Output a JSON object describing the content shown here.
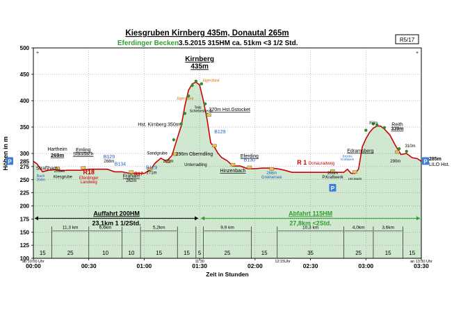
{
  "header": {
    "title": "Kiesgruben  Kirnberg 435m,  Donautal  265m",
    "subtitle_region": "Eferdinger Becken",
    "subtitle_details": "3.5.2015      315HM     ca.  51km      <3 1/2  Std.",
    "route_id": "R5/17"
  },
  "colors": {
    "profile_fill": "#cfe8cf",
    "profile_line": "#cc0000",
    "green_text": "#2e9e2e",
    "blue_text": "#1f5fbf",
    "red_text": "#cc0000",
    "start_badge": "#3a7fd5"
  },
  "chart_data": {
    "type": "area",
    "title": "Kiesgruben  Kirnberg 435m,  Donautal  265m",
    "xlabel": "Zeit in Stunden",
    "ylabel": "Höhen in m",
    "ylim": [
      100,
      500
    ],
    "xlim": [
      0,
      210
    ],
    "grid": true,
    "y_ticks": [
      "100",
      "125",
      "150",
      "175",
      "200",
      "225",
      "250",
      "275",
      "300",
      "350",
      "400",
      "450",
      "500"
    ],
    "y_tick_values": [
      100,
      125,
      150,
      175,
      200,
      225,
      250,
      275,
      300,
      350,
      400,
      450,
      500
    ],
    "y_extra_label": {
      "value": 285,
      "label": "285"
    },
    "x_ticks": [
      {
        "t": 0,
        "label": "00:00"
      },
      {
        "t": 30,
        "label": "00:30"
      },
      {
        "t": 60,
        "label": "01:00"
      },
      {
        "t": 90,
        "label": "01:30"
      },
      {
        "t": 120,
        "label": "02:00"
      },
      {
        "t": 150,
        "label": "02:30"
      },
      {
        "t": 180,
        "label": "03:00"
      },
      {
        "t": 210,
        "label": "03:30"
      }
    ],
    "x_minor_labels": [
      {
        "t": 0,
        "label": "ab 10:00 Uhr"
      },
      {
        "t": 90,
        "label": "11:30"
      },
      {
        "t": 135,
        "label": "12:15Uhr"
      },
      {
        "t": 210,
        "label": "an 13:30 Uhr"
      }
    ],
    "series": [
      {
        "x": [
          0,
          2,
          5,
          8,
          12,
          15,
          18,
          22,
          26,
          30,
          33,
          36,
          40,
          44,
          48,
          52,
          56,
          60,
          63,
          66,
          69,
          72,
          75,
          78,
          80,
          82,
          84,
          86,
          88,
          90,
          92,
          94,
          96,
          98,
          100,
          102,
          105,
          108,
          112,
          116,
          120,
          124,
          128,
          132,
          136,
          140,
          145,
          150,
          155,
          160,
          164,
          168,
          170,
          172,
          174,
          176,
          178,
          180,
          182,
          184,
          186,
          188,
          190,
          193,
          196,
          199,
          202,
          205,
          208,
          210
        ],
        "y": [
          285,
          280,
          265,
          268,
          269,
          267,
          268,
          268,
          268,
          270,
          270,
          270,
          270,
          265,
          265,
          262,
          262,
          262,
          268,
          282,
          291,
          285,
          296,
          330,
          352,
          390,
          420,
          432,
          435,
          430,
          400,
          365,
          320,
          312,
          300,
          292,
          286,
          276,
          276,
          271,
          271,
          272,
          272,
          271,
          268,
          264,
          264,
          264,
          264,
          264,
          264,
          264,
          270,
          262,
          262,
          270,
          312,
          328,
          340,
          348,
          352,
          352,
          346,
          335,
          315,
          298,
          300,
          292,
          290,
          285
        ]
      }
    ],
    "segments": [
      {
        "t_start": 0,
        "t_end": 10,
        "duration": "15",
        "distance": ""
      },
      {
        "t_start": 10,
        "t_end": 30,
        "duration": "25",
        "distance": "11,3 km"
      },
      {
        "t_start": 30,
        "t_end": 48,
        "duration": "10",
        "distance": "6,6km"
      },
      {
        "t_start": 48,
        "t_end": 58,
        "duration": "10",
        "distance": ""
      },
      {
        "t_start": 58,
        "t_end": 78,
        "duration": "15",
        "distance": "5,2km"
      },
      {
        "t_start": 78,
        "t_end": 88,
        "duration": "15",
        "distance": ""
      },
      {
        "t_start": 88,
        "t_end": 92,
        "duration": "5",
        "distance": ""
      },
      {
        "t_start": 92,
        "t_end": 118,
        "duration": "25",
        "distance": "9,9 km"
      },
      {
        "t_start": 118,
        "t_end": 132,
        "duration": "15",
        "distance": ""
      },
      {
        "t_start": 132,
        "t_end": 168,
        "duration": "35",
        "distance": "10,3 km"
      },
      {
        "t_start": 168,
        "t_end": 184,
        "duration": "25",
        "distance": "4,0km"
      },
      {
        "t_start": 184,
        "t_end": 200,
        "duration": "15",
        "distance": "3,6km"
      },
      {
        "t_start": 200,
        "t_end": 210,
        "duration": "15",
        "distance": ""
      }
    ],
    "summary": [
      {
        "t_start": 0,
        "t_end": 90,
        "line1": "Auffahrt 200HM",
        "line2": "23,1km   1 1/2Std.",
        "color": "#000000"
      },
      {
        "t_start": 90,
        "t_end": 210,
        "line1": "Abfahrt 115HM",
        "line2": "27,8km <2Std.",
        "color": "#2e9e2e"
      }
    ],
    "annotations": [
      {
        "t": 0,
        "y": 285,
        "text": "Straßham",
        "dx": 4,
        "dy": 12,
        "size": 7,
        "color": "#000000",
        "anchor": "start",
        "underline": false,
        "bold": false
      },
      {
        "t": 13,
        "y": 295,
        "text": "Hartheim",
        "dx": 0,
        "dy": -8,
        "size": 7,
        "color": "#000000",
        "anchor": "middle",
        "underline": false,
        "bold": false
      },
      {
        "t": 13,
        "y": 295,
        "text": "269m",
        "dx": 0,
        "dy": 1,
        "size": 7.5,
        "color": "#000000",
        "anchor": "middle",
        "underline": true,
        "bold": true
      },
      {
        "t": 4,
        "y": 255,
        "text": "Bach",
        "dx": 0,
        "dy": 0,
        "size": 5,
        "color": "#1f5fbf",
        "anchor": "middle",
        "underline": false,
        "bold": false
      },
      {
        "t": 4,
        "y": 248,
        "text": "264m",
        "dx": 0,
        "dy": 0,
        "size": 5,
        "color": "#1f5fbf",
        "anchor": "middle",
        "underline": false,
        "bold": false
      },
      {
        "t": 14,
        "y": 264,
        "text": "268m",
        "dx": 0,
        "dy": 0,
        "size": 6,
        "color": "#000000",
        "anchor": "middle",
        "underline": false,
        "bold": false
      },
      {
        "t": 16,
        "y": 253,
        "text": "Kiesgrube",
        "dx": 0,
        "dy": 0,
        "size": 6,
        "color": "#000000",
        "anchor": "middle",
        "underline": false,
        "bold": false
      },
      {
        "t": 27,
        "y": 304,
        "text": "Emling",
        "dx": 0,
        "dy": 0,
        "size": 7,
        "color": "#000000",
        "anchor": "middle",
        "underline": true,
        "bold": false
      },
      {
        "t": 27,
        "y": 296,
        "text": "Staudach",
        "dx": 0,
        "dy": 0,
        "size": 7,
        "color": "#000000",
        "anchor": "middle",
        "underline": true,
        "bold": false
      },
      {
        "t": 30,
        "y": 260,
        "text": "R18",
        "dx": 0,
        "dy": 0,
        "size": 9,
        "color": "#cc0000",
        "anchor": "middle",
        "underline": false,
        "bold": true
      },
      {
        "t": 30,
        "y": 251,
        "text": "Eferdinger",
        "dx": 0,
        "dy": 0,
        "size": 6,
        "color": "#cc0000",
        "anchor": "middle",
        "underline": false,
        "bold": false
      },
      {
        "t": 30,
        "y": 243,
        "text": "Landweg",
        "dx": 0,
        "dy": 0,
        "size": 6,
        "color": "#cc0000",
        "anchor": "middle",
        "underline": false,
        "bold": false
      },
      {
        "t": 41,
        "y": 291,
        "text": "B129",
        "dx": 0,
        "dy": 0,
        "size": 7,
        "color": "#1f5fbf",
        "anchor": "middle",
        "underline": false,
        "bold": false
      },
      {
        "t": 41,
        "y": 283,
        "text": "268m",
        "dx": 0,
        "dy": 0,
        "size": 6,
        "color": "#000000",
        "anchor": "middle",
        "underline": false,
        "bold": false
      },
      {
        "t": 47,
        "y": 277,
        "text": "B134",
        "dx": 0,
        "dy": 0,
        "size": 7,
        "color": "#1f5fbf",
        "anchor": "middle",
        "underline": false,
        "bold": false
      },
      {
        "t": 53,
        "y": 254,
        "text": "Fraham",
        "dx": 0,
        "dy": 0,
        "size": 7,
        "color": "#000000",
        "anchor": "middle",
        "underline": true,
        "bold": false
      },
      {
        "t": 53,
        "y": 246,
        "text": "262m",
        "dx": 0,
        "dy": 0,
        "size": 6,
        "color": "#000000",
        "anchor": "middle",
        "underline": false,
        "bold": false
      },
      {
        "t": 57,
        "y": 258,
        "text": "R17",
        "dx": 0,
        "dy": 0,
        "size": 7,
        "color": "#cc0000",
        "anchor": "middle",
        "underline": false,
        "bold": true
      },
      {
        "t": 64,
        "y": 270,
        "text": "B129",
        "dx": 0,
        "dy": 0,
        "size": 7,
        "color": "#1f5fbf",
        "anchor": "middle",
        "underline": false,
        "bold": false
      },
      {
        "t": 64,
        "y": 261,
        "text": "271m",
        "dx": 0,
        "dy": 0,
        "size": 6,
        "color": "#000000",
        "anchor": "middle",
        "underline": false,
        "bold": false
      },
      {
        "t": 67,
        "y": 298,
        "text": "Sandgrube",
        "dx": 0,
        "dy": 0,
        "size": 6,
        "color": "#000000",
        "anchor": "middle",
        "underline": false,
        "bold": false
      },
      {
        "t": 73,
        "y": 283,
        "text": "285m",
        "dx": 0,
        "dy": 0,
        "size": 6,
        "color": "#000000",
        "anchor": "middle",
        "underline": false,
        "bold": false
      },
      {
        "t": 80,
        "y": 352,
        "text": "Hst. Kirnberg 350m",
        "dx": -2,
        "dy": 0,
        "size": 7,
        "color": "#000000",
        "anchor": "end",
        "underline": false,
        "bold": false
      },
      {
        "t": 77,
        "y": 296,
        "text": "296m Oberndling",
        "dx": 0,
        "dy": 0,
        "size": 7,
        "color": "#000000",
        "anchor": "start",
        "underline": false,
        "bold": false
      },
      {
        "t": 90,
        "y": 475,
        "text": "Kirnberg",
        "dx": 0,
        "dy": 0,
        "size": 10,
        "color": "#000000",
        "anchor": "middle",
        "underline": true,
        "bold": true
      },
      {
        "t": 90,
        "y": 461,
        "text": "435m",
        "dx": 0,
        "dy": 0,
        "size": 10,
        "color": "#000000",
        "anchor": "middle",
        "underline": true,
        "bold": true
      },
      {
        "t": 82,
        "y": 402,
        "text": "Jägerstand",
        "dx": 0,
        "dy": 0,
        "size": 5,
        "color": "#cc6600",
        "anchor": "middle",
        "underline": false,
        "bold": false
      },
      {
        "t": 96,
        "y": 436,
        "text": "Jägerstand",
        "dx": 0,
        "dy": 0,
        "size": 5,
        "color": "#cc6600",
        "anchor": "middle",
        "underline": false,
        "bold": false
      },
      {
        "t": 89,
        "y": 385,
        "text": "Teils",
        "dx": 0,
        "dy": 0,
        "size": 5,
        "color": "#000000",
        "anchor": "middle",
        "underline": false,
        "bold": false
      },
      {
        "t": 91,
        "y": 378,
        "text": "Schiebestrecke",
        "dx": 0,
        "dy": 0,
        "size": 5,
        "color": "#000000",
        "anchor": "middle",
        "underline": false,
        "bold": false
      },
      {
        "t": 95,
        "y": 380,
        "text": "370m Hst.Gstocket",
        "dx": 0,
        "dy": 0,
        "size": 7,
        "color": "#000000",
        "anchor": "start",
        "underline": true,
        "bold": false
      },
      {
        "t": 101,
        "y": 338,
        "text": "B129",
        "dx": 0,
        "dy": 0,
        "size": 7,
        "color": "#1f5fbf",
        "anchor": "middle",
        "underline": false,
        "bold": false
      },
      {
        "t": 94,
        "y": 276,
        "text": "Unterradling",
        "dx": 0,
        "dy": 0,
        "size": 6,
        "color": "#000000",
        "anchor": "end",
        "underline": false,
        "bold": false
      },
      {
        "t": 108,
        "y": 264,
        "text": "Hinzenbach",
        "dx": 0,
        "dy": 0,
        "size": 7,
        "color": "#000000",
        "anchor": "middle",
        "underline": true,
        "bold": false
      },
      {
        "t": 117,
        "y": 292,
        "text": "Eferding",
        "dx": 0,
        "dy": 0,
        "size": 7,
        "color": "#000000",
        "anchor": "middle",
        "underline": true,
        "bold": false
      },
      {
        "t": 117,
        "y": 285,
        "text": "B130",
        "dx": 0,
        "dy": 0,
        "size": 7,
        "color": "#1f5fbf",
        "anchor": "middle",
        "underline": false,
        "bold": false
      },
      {
        "t": 129,
        "y": 260,
        "text": "266m",
        "dx": 0,
        "dy": 0,
        "size": 6,
        "color": "#1f5fbf",
        "anchor": "middle",
        "underline": false,
        "bold": false
      },
      {
        "t": 129,
        "y": 252,
        "text": "Greinersee",
        "dx": 0,
        "dy": 0,
        "size": 6,
        "color": "#1f5fbf",
        "anchor": "middle",
        "underline": false,
        "bold": false
      },
      {
        "t": 148,
        "y": 279,
        "text": "R 1",
        "dx": 0,
        "dy": 0,
        "size": 9,
        "color": "#cc0000",
        "anchor": "end",
        "underline": false,
        "bold": true
      },
      {
        "t": 149,
        "y": 279,
        "text": "Donauradweg",
        "dx": 0,
        "dy": 0,
        "size": 6,
        "color": "#cc0000",
        "anchor": "start",
        "underline": false,
        "bold": false
      },
      {
        "t": 162,
        "y": 260,
        "text": "266m",
        "dx": 0,
        "dy": 0,
        "size": 6,
        "color": "#000000",
        "anchor": "middle",
        "underline": false,
        "bold": false
      },
      {
        "t": 162,
        "y": 252,
        "text": "P.Kraftwerk",
        "dx": 0,
        "dy": 0,
        "size": 6,
        "color": "#000000",
        "anchor": "middle",
        "underline": false,
        "bold": false
      },
      {
        "t": 170,
        "y": 293,
        "text": "Brücke",
        "dx": 0,
        "dy": 0,
        "size": 4.5,
        "color": "#1f5fbf",
        "anchor": "middle",
        "underline": false,
        "bold": false
      },
      {
        "t": 170,
        "y": 287,
        "text": "Kraftwerk",
        "dx": 0,
        "dy": 0,
        "size": 4.5,
        "color": "#1f5fbf",
        "anchor": "middle",
        "underline": false,
        "bold": false
      },
      {
        "t": 174,
        "y": 250,
        "text": "Unt.Markt",
        "dx": 0,
        "dy": 0,
        "size": 4.5,
        "color": "#000000",
        "anchor": "middle",
        "underline": false,
        "bold": false
      },
      {
        "t": 177,
        "y": 302,
        "text": "Edramsberg",
        "dx": 0,
        "dy": 0,
        "size": 7,
        "color": "#000000",
        "anchor": "middle",
        "underline": true,
        "bold": false
      },
      {
        "t": 184,
        "y": 356,
        "text": "350m",
        "dx": 0,
        "dy": 0,
        "size": 5,
        "color": "#000000",
        "anchor": "middle",
        "underline": false,
        "bold": false
      },
      {
        "t": 197,
        "y": 352,
        "text": "Reith",
        "dx": 0,
        "dy": 0,
        "size": 7,
        "color": "#000000",
        "anchor": "middle",
        "underline": false,
        "bold": false
      },
      {
        "t": 197,
        "y": 344,
        "text": "339m",
        "dx": 0,
        "dy": 0,
        "size": 7,
        "color": "#000000",
        "anchor": "middle",
        "underline": true,
        "bold": true
      },
      {
        "t": 204,
        "y": 312,
        "text": "310m",
        "dx": 0,
        "dy": 0,
        "size": 6,
        "color": "#000000",
        "anchor": "middle",
        "underline": false,
        "bold": false
      },
      {
        "t": 196,
        "y": 283,
        "text": "290m",
        "dx": 0,
        "dy": 0,
        "size": 6,
        "color": "#000000",
        "anchor": "middle",
        "underline": false,
        "bold": false
      },
      {
        "t": 210,
        "y": 287,
        "text": "285m",
        "dx": 11,
        "dy": 0,
        "size": 7,
        "color": "#000000",
        "anchor": "start",
        "underline": false,
        "bold": true
      },
      {
        "t": 210,
        "y": 276,
        "text": "LILO Hst.",
        "dx": 11,
        "dy": 0,
        "size": 7,
        "color": "#000000",
        "anchor": "start",
        "underline": false,
        "bold": false
      }
    ],
    "parking": [
      {
        "t": 0,
        "y": 285,
        "label": "P"
      },
      {
        "t": 162,
        "y": 234,
        "label": "P"
      },
      {
        "t": 210,
        "y": 285,
        "label": "P"
      }
    ]
  }
}
